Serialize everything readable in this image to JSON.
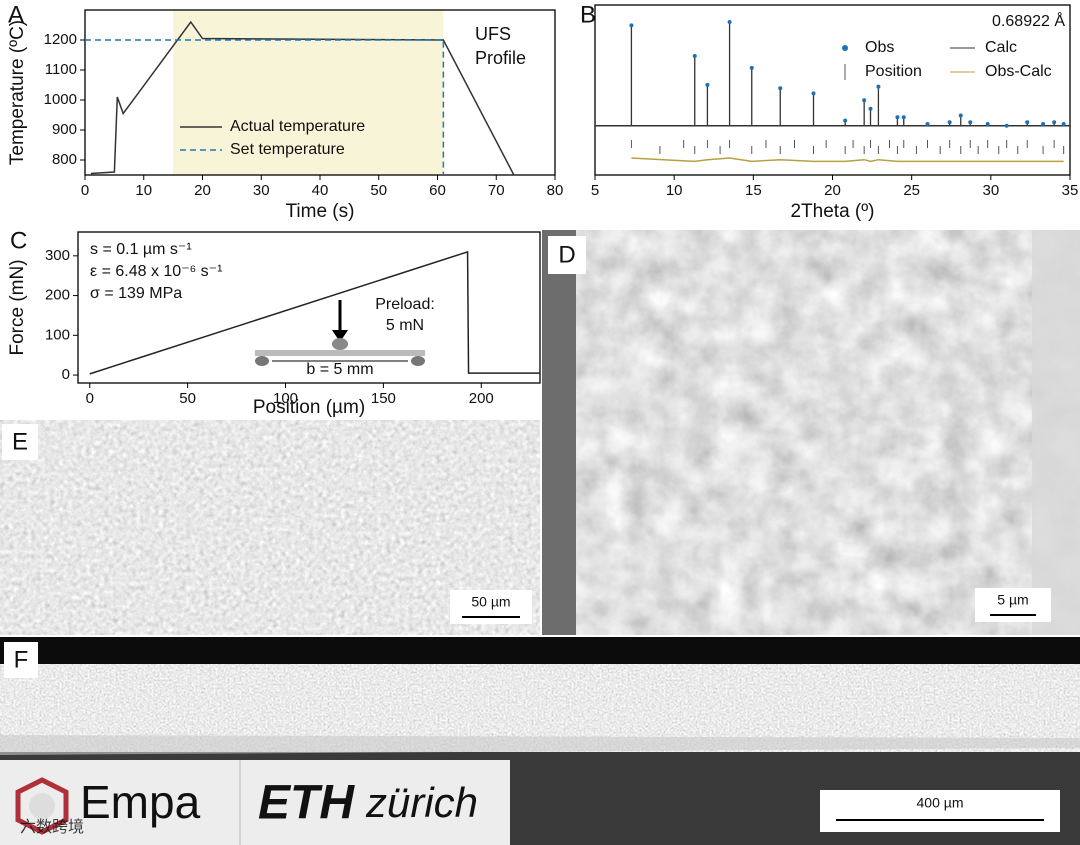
{
  "chart_data": [
    {
      "type": "line",
      "label": "A",
      "xlabel": "Time (s)",
      "ylabel": "Temperature (ºC)",
      "xlim": [
        0,
        80
      ],
      "xticks": [
        0,
        10,
        20,
        30,
        40,
        50,
        60,
        70,
        80
      ],
      "ylim": [
        750,
        1300
      ],
      "yticks": [
        800,
        900,
        1000,
        1100,
        1200
      ],
      "highlight_x": [
        15,
        61
      ],
      "highlight_color": "#f8f4d8",
      "annotations": [
        "UFS",
        "Profile"
      ],
      "series": [
        {
          "name": "Actual temperature",
          "color": "#333333",
          "x": [
            1,
            5,
            5.5,
            6.5,
            18,
            20,
            61,
            73
          ],
          "values": [
            755,
            760,
            1010,
            955,
            1260,
            1205,
            1200,
            750
          ]
        },
        {
          "name": "Set temperature",
          "color": "#1f77b4",
          "dash": true,
          "x": [
            0,
            61,
            61
          ],
          "values": [
            1200,
            1200,
            750
          ]
        }
      ]
    },
    {
      "type": "xrd",
      "label": "B",
      "xlabel": "2Theta (º)",
      "annotation": "0.68922 Å",
      "xlim": [
        5,
        35
      ],
      "xticks": [
        5,
        10,
        15,
        20,
        25,
        30,
        35
      ],
      "ylim": [
        0,
        100
      ],
      "x": [
        7.3,
        11.3,
        12.1,
        13.5,
        14.9,
        16.7,
        18.8,
        20.8,
        22,
        22.4,
        22.9,
        24.1,
        24.5,
        26,
        27.4,
        28.1,
        28.7,
        29.8,
        31,
        32.3,
        33.3,
        34,
        34.6
      ],
      "series": [
        {
          "name": "Obs",
          "color": "#1f6fb4",
          "values": [
            88,
            70,
            53,
            90,
            63,
            51,
            48,
            32,
            44,
            39,
            52,
            34,
            34,
            30,
            31,
            35,
            31,
            30,
            29,
            31,
            30,
            31,
            30
          ]
        },
        {
          "name": "Calc",
          "color": "#333333",
          "values": [
            88,
            70,
            53,
            90,
            63,
            51,
            48,
            32,
            44,
            39,
            52,
            34,
            34,
            30,
            31,
            35,
            31,
            30,
            29,
            31,
            30,
            31,
            30
          ]
        },
        {
          "name": "Obs-Calc",
          "color": "#b8a040",
          "values": [
            10,
            8,
            9,
            10,
            8,
            9,
            8,
            8,
            9,
            8,
            9,
            8,
            8,
            8,
            8,
            8,
            8,
            8,
            8,
            8,
            8,
            8,
            8
          ]
        },
        {
          "name": "Position",
          "color": "#555555",
          "x": [
            7.3,
            9.1,
            10.6,
            11.3,
            12.1,
            12.9,
            13.5,
            14.9,
            15.8,
            16.7,
            17.6,
            18.8,
            19.6,
            20.8,
            21.3,
            22,
            22.4,
            22.9,
            23.6,
            24.1,
            24.5,
            25.3,
            26,
            26.8,
            27.4,
            28.1,
            28.7,
            29.2,
            29.8,
            30.5,
            31,
            31.7,
            32.3,
            33.3,
            34,
            34.6
          ]
        }
      ]
    },
    {
      "type": "line",
      "label": "C",
      "xlabel": "Position (µm)",
      "ylabel": "Force (mN)",
      "xlim": [
        -6,
        230
      ],
      "xticks": [
        0,
        50,
        100,
        150,
        200
      ],
      "ylim": [
        -20,
        360
      ],
      "yticks": [
        0,
        100,
        200,
        300
      ],
      "annotations": [
        "s = 0.1 µm s⁻¹",
        "ε = 6.48 x 10⁻⁶ s⁻¹",
        "σ = 139 MPa"
      ],
      "inset": [
        "Preload:",
        "5 mN",
        "b = 5 mm"
      ],
      "color": "#222222",
      "x": [
        0,
        193,
        193.5,
        230
      ],
      "values": [
        3,
        310,
        5,
        5
      ]
    }
  ],
  "images": [
    {
      "label": "D",
      "scale_bar": "5 µm"
    },
    {
      "label": "E",
      "scale_bar": "50 µm"
    },
    {
      "label": "F",
      "scale_bar": "400 µm"
    }
  ],
  "logos": {
    "empa": "Empa",
    "eth_mark": "ETH",
    "eth_name": "zürich"
  },
  "watermark": "六数跨境"
}
